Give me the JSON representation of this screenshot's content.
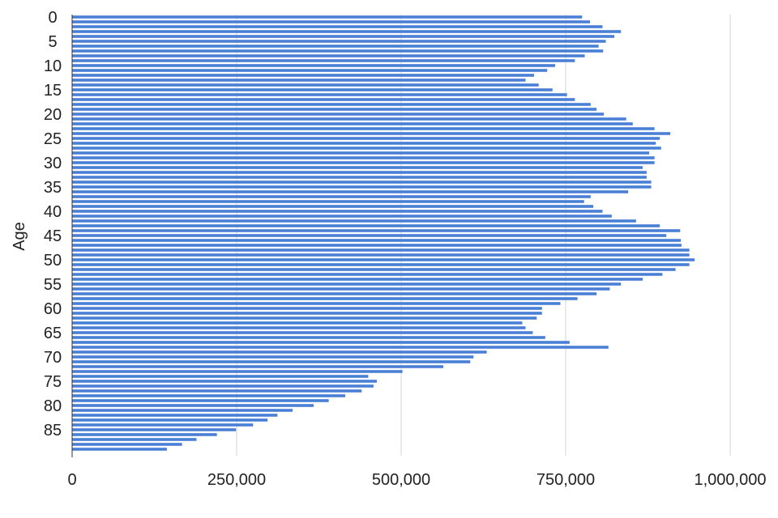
{
  "chart_data": {
    "type": "bar",
    "orientation": "horizontal",
    "title": "",
    "xlabel": "",
    "ylabel": "Age",
    "xlim": [
      0,
      1000000
    ],
    "x_ticks": [
      0,
      250000,
      500000,
      750000,
      1000000
    ],
    "x_tick_labels": [
      "0",
      "250,000",
      "500,000",
      "750,000",
      "1,000,000"
    ],
    "y_tick_labels": [
      "0",
      "5",
      "10",
      "15",
      "20",
      "25",
      "30",
      "35",
      "40",
      "45",
      "50",
      "55",
      "60",
      "65",
      "70",
      "75",
      "80",
      "85"
    ],
    "grid": "vertical",
    "legend": "none",
    "bar_color": "#4a7fd6",
    "categories": [
      0,
      1,
      2,
      3,
      4,
      5,
      6,
      7,
      8,
      9,
      10,
      11,
      12,
      13,
      14,
      15,
      16,
      17,
      18,
      19,
      20,
      21,
      22,
      23,
      24,
      25,
      26,
      27,
      28,
      29,
      30,
      31,
      32,
      33,
      34,
      35,
      36,
      37,
      38,
      39,
      40,
      41,
      42,
      43,
      44,
      45,
      46,
      47,
      48,
      49,
      50,
      51,
      52,
      53,
      54,
      55,
      56,
      57,
      58,
      59,
      60,
      61,
      62,
      63,
      64,
      65,
      66,
      67,
      68,
      69,
      70,
      71,
      72,
      73,
      74,
      75,
      76,
      77,
      78,
      79,
      80,
      81,
      82,
      83,
      84,
      85,
      86,
      87,
      88,
      89
    ],
    "values": [
      775000,
      787000,
      806000,
      834000,
      824000,
      811000,
      800000,
      807000,
      779000,
      764000,
      734000,
      722000,
      702000,
      689000,
      709000,
      730000,
      752000,
      764000,
      788000,
      797000,
      808000,
      842000,
      852000,
      885000,
      909000,
      893000,
      887000,
      895000,
      877000,
      885000,
      885000,
      867000,
      873000,
      873000,
      880000,
      880000,
      845000,
      788000,
      778000,
      792000,
      806000,
      820000,
      857000,
      893000,
      924000,
      903000,
      925000,
      926000,
      938000,
      938000,
      946000,
      938000,
      917000,
      897000,
      867000,
      834000,
      817000,
      797000,
      768000,
      742000,
      714000,
      714000,
      706000,
      684000,
      689000,
      700000,
      719000,
      756000,
      815000,
      630000,
      610000,
      605000,
      564000,
      502000,
      450000,
      463000,
      458000,
      440000,
      415000,
      390000,
      367000,
      335000,
      312000,
      297000,
      275000,
      249000,
      220000,
      189000,
      167000,
      144000
    ]
  }
}
